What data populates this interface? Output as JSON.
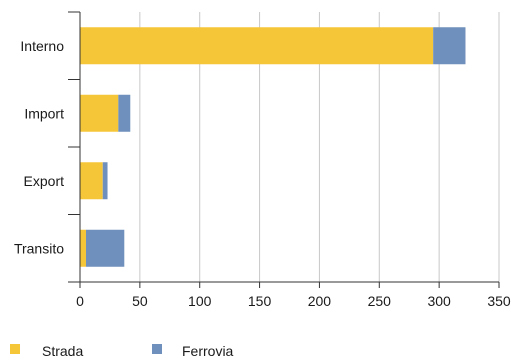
{
  "chart_data": {
    "type": "bar",
    "orientation": "horizontal",
    "stacked": true,
    "categories": [
      "Interno",
      "Import",
      "Export",
      "Transito"
    ],
    "series": [
      {
        "name": "Strada",
        "values": [
          295,
          32,
          19,
          5
        ],
        "color": "#F5C638"
      },
      {
        "name": "Ferrovia",
        "values": [
          27,
          10,
          4,
          32
        ],
        "color": "#6F8FBC"
      }
    ],
    "xlim": [
      0,
      350
    ],
    "xticks": [
      "0",
      "50",
      "100",
      "150",
      "200",
      "250",
      "300",
      "350"
    ],
    "grid": "vertical",
    "legend_position": "bottom-left"
  }
}
